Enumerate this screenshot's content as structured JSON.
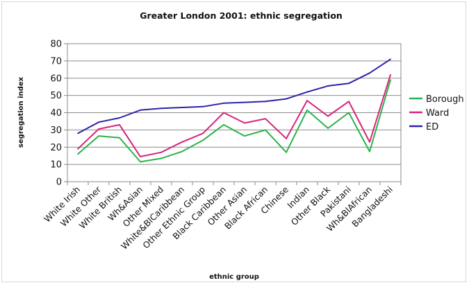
{
  "chart_data": {
    "type": "line",
    "title": "Greater London 2001: ethnic segregation",
    "xlabel": "ethnic group",
    "ylabel": "segregation index",
    "ylim": [
      0,
      80
    ],
    "yticks": [
      0,
      10,
      20,
      30,
      40,
      50,
      60,
      70,
      80
    ],
    "grid": true,
    "legend": "right",
    "categories": [
      "White Irish",
      "White Other",
      "White British",
      "Wh&Asian",
      "Other Mixed",
      "White&BlCaribbean",
      "Other Ethnic Group",
      "Black Caribbean",
      "Other Asian",
      "Black African",
      "Chinese",
      "Indian",
      "Other Black",
      "Pakistani",
      "Wh&BlAfrican",
      "Bangladeshi"
    ],
    "series": [
      {
        "name": "Borough",
        "color": "#2ab24a",
        "values": [
          16,
          26.5,
          25.5,
          11.5,
          13.5,
          17.5,
          24,
          33,
          26.5,
          30,
          17,
          41.5,
          31,
          40,
          17.5,
          59
        ]
      },
      {
        "name": "Ward",
        "color": "#d6237a",
        "values": [
          19,
          30.5,
          33,
          14.5,
          17,
          23,
          28,
          40,
          34,
          36.5,
          25,
          47,
          38,
          46.5,
          23,
          62
        ]
      },
      {
        "name": "ED",
        "color": "#2a22a8",
        "values": [
          28,
          34.5,
          37,
          41.5,
          42.5,
          43,
          43.5,
          45.5,
          46,
          46.5,
          48,
          52,
          55.5,
          57,
          63,
          71
        ]
      }
    ]
  }
}
